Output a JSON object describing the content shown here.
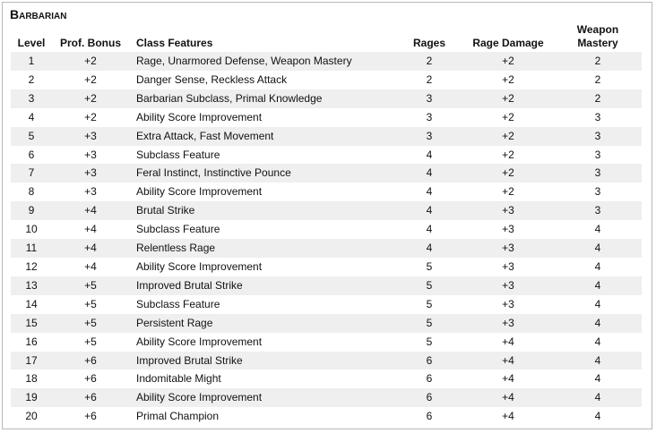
{
  "header": {
    "title": "Barbarian"
  },
  "table": {
    "columns": [
      "Level",
      "Prof. Bonus",
      "Class Features",
      "Rages",
      "Rage Damage",
      "Weapon Mastery"
    ],
    "rows": [
      [
        "1",
        "+2",
        "Rage, Unarmored Defense, Weapon Mastery",
        "2",
        "+2",
        "2"
      ],
      [
        "2",
        "+2",
        "Danger Sense, Reckless Attack",
        "2",
        "+2",
        "2"
      ],
      [
        "3",
        "+2",
        "Barbarian Subclass, Primal Knowledge",
        "3",
        "+2",
        "2"
      ],
      [
        "4",
        "+2",
        "Ability Score Improvement",
        "3",
        "+2",
        "3"
      ],
      [
        "5",
        "+3",
        "Extra Attack, Fast Movement",
        "3",
        "+2",
        "3"
      ],
      [
        "6",
        "+3",
        "Subclass Feature",
        "4",
        "+2",
        "3"
      ],
      [
        "7",
        "+3",
        "Feral Instinct, Instinctive Pounce",
        "4",
        "+2",
        "3"
      ],
      [
        "8",
        "+3",
        "Ability Score Improvement",
        "4",
        "+2",
        "3"
      ],
      [
        "9",
        "+4",
        "Brutal Strike",
        "4",
        "+3",
        "3"
      ],
      [
        "10",
        "+4",
        "Subclass Feature",
        "4",
        "+3",
        "4"
      ],
      [
        "11",
        "+4",
        "Relentless Rage",
        "4",
        "+3",
        "4"
      ],
      [
        "12",
        "+4",
        "Ability Score Improvement",
        "5",
        "+3",
        "4"
      ],
      [
        "13",
        "+5",
        "Improved Brutal Strike",
        "5",
        "+3",
        "4"
      ],
      [
        "14",
        "+5",
        "Subclass Feature",
        "5",
        "+3",
        "4"
      ],
      [
        "15",
        "+5",
        "Persistent Rage",
        "5",
        "+3",
        "4"
      ],
      [
        "16",
        "+5",
        "Ability Score Improvement",
        "5",
        "+4",
        "4"
      ],
      [
        "17",
        "+6",
        "Improved Brutal Strike",
        "6",
        "+4",
        "4"
      ],
      [
        "18",
        "+6",
        "Indomitable Might",
        "6",
        "+4",
        "4"
      ],
      [
        "19",
        "+6",
        "Ability Score Improvement",
        "6",
        "+4",
        "4"
      ],
      [
        "20",
        "+6",
        "Primal Champion",
        "6",
        "+4",
        "4"
      ]
    ]
  }
}
